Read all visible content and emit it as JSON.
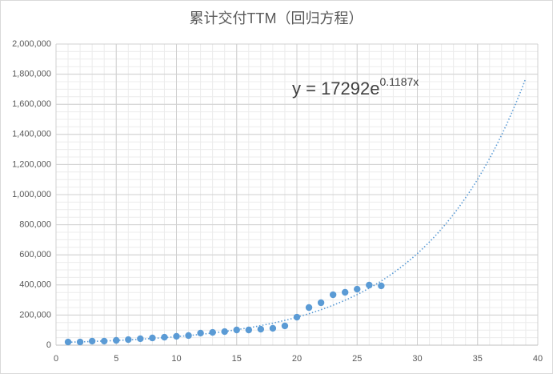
{
  "chart_data": {
    "type": "scatter",
    "title": "累计交付TTM（回归方程）",
    "x": [
      1,
      2,
      3,
      4,
      5,
      6,
      7,
      8,
      9,
      10,
      11,
      12,
      13,
      14,
      15,
      16,
      17,
      18,
      19,
      20,
      21,
      22,
      23,
      24,
      25,
      26,
      27
    ],
    "series": [
      {
        "color": "#5b9bd5",
        "values": [
          21000,
          21000,
          27000,
          27000,
          32000,
          37000,
          43000,
          48000,
          53000,
          59000,
          64000,
          80000,
          85000,
          90000,
          101000,
          101000,
          106000,
          112000,
          128000,
          186000,
          250000,
          282000,
          335000,
          351000,
          372000,
          399000,
          394000
        ]
      }
    ],
    "trendline": {
      "kind": "exponential",
      "a": 17292,
      "b": 0.1187,
      "x_range": [
        1,
        39
      ],
      "color": "#5b9bd5",
      "label": "y = 17292e",
      "label_exponent": "0.1187x"
    },
    "xlim": [
      0,
      40
    ],
    "xticks": [
      0,
      5,
      10,
      15,
      20,
      25,
      30,
      35,
      40
    ],
    "ylim": [
      0,
      2000000
    ],
    "yticks": [
      0,
      {
        "value": 200000,
        "label": "200,000"
      },
      {
        "value": 400000,
        "label": "400,000"
      },
      {
        "value": 600000,
        "label": "600,000"
      },
      {
        "value": 800000,
        "label": "800,000"
      },
      {
        "value": 1000000,
        "label": "1,000,000"
      },
      {
        "value": 1200000,
        "label": "1,200,000"
      },
      {
        "value": 1400000,
        "label": "1,400,000"
      },
      {
        "value": 1600000,
        "label": "1,600,000"
      },
      {
        "value": 1800000,
        "label": "1,800,000"
      },
      {
        "value": 2000000,
        "label": "2,000,000"
      }
    ],
    "grid": true,
    "minor_grid": {
      "x_step": 1,
      "y_step": 50000
    }
  }
}
